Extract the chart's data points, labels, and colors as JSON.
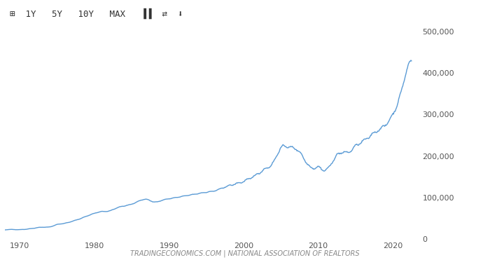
{
  "title_bar_text": "1Y  5Y  10Y  MAX",
  "footer_text": "TRADINGECONOMICS.COM | NATIONAL ASSOCIATION OF REALTORS",
  "line_color": "#5b9bd5",
  "background_color": "#ffffff",
  "toolbar_background": "#f0f0f0",
  "grid_color": "#e0e0e0",
  "axis_color": "#cccccc",
  "tick_color": "#555555",
  "ylim": [
    0,
    500000
  ],
  "yticks": [
    0,
    100000,
    200000,
    300000,
    400000,
    500000
  ],
  "xticks": [
    1970,
    1980,
    1990,
    2000,
    2010,
    2020
  ],
  "xlim_start": 1968,
  "xlim_end": 2023.5,
  "data_years": [
    1968,
    1969,
    1970,
    1971,
    1972,
    1973,
    1974,
    1975,
    1976,
    1977,
    1978,
    1979,
    1980,
    1981,
    1982,
    1983,
    1984,
    1985,
    1986,
    1987,
    1988,
    1989,
    1990,
    1991,
    1992,
    1993,
    1994,
    1995,
    1996,
    1997,
    1998,
    1999,
    2000,
    2001,
    2002,
    2003,
    2004,
    2005,
    2006,
    2007,
    2008,
    2009,
    2010,
    2011,
    2012,
    2013,
    2014,
    2015,
    2016,
    2017,
    2018,
    2019,
    2020,
    2021,
    2022,
    2022.5
  ],
  "data_values": [
    22300,
    23400,
    23000,
    24400,
    26700,
    28900,
    29500,
    35300,
    38100,
    42900,
    48700,
    55700,
    62200,
    66400,
    67800,
    75300,
    79900,
    84300,
    92000,
    95700,
    89500,
    93100,
    97300,
    100300,
    103700,
    106800,
    109900,
    112900,
    115800,
    121800,
    128400,
    133300,
    139000,
    147800,
    158100,
    170000,
    185200,
    219600,
    221900,
    217000,
    196600,
    172100,
    172900,
    166200,
    188900,
    208300,
    208700,
    223900,
    235500,
    248800,
    261600,
    274600,
    300000,
    346900,
    413800,
    428700
  ]
}
